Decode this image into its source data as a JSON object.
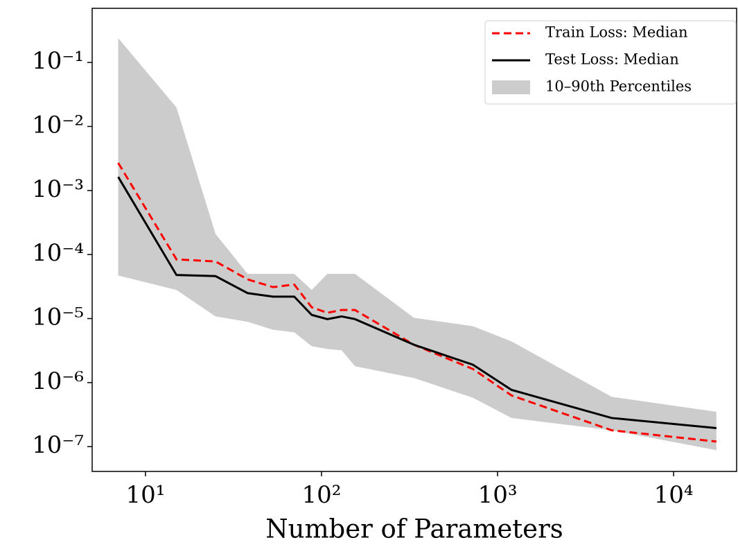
{
  "chart_data": {
    "type": "line",
    "xlabel": "Number of Parameters",
    "x": [
      7,
      15,
      25,
      38,
      53,
      70,
      88,
      108,
      130,
      155,
      335,
      725,
      1200,
      4450,
      17500
    ],
    "series": [
      {
        "name": "Train Loss: Median",
        "color": "#ff0000",
        "dash": true,
        "values": [
          0.0027,
          8.4e-05,
          7.8e-05,
          4.1e-05,
          3.1e-05,
          3.4e-05,
          1.5e-05,
          1.23e-05,
          1.36e-05,
          1.36e-05,
          3.9e-06,
          1.63e-06,
          6.3e-07,
          1.8e-07,
          1.2e-07
        ]
      },
      {
        "name": "Test Loss: Median",
        "color": "#000000",
        "dash": false,
        "values": [
          0.00163,
          4.8e-05,
          4.6e-05,
          2.5e-05,
          2.2e-05,
          2.2e-05,
          1.14e-05,
          9.8e-06,
          1.08e-05,
          9.8e-06,
          3.9e-06,
          1.9e-06,
          7.7e-07,
          2.8e-07,
          1.95e-07
        ]
      }
    ],
    "band": {
      "name": "10–90th Percentiles",
      "color": "#cccccc",
      "upper": [
        0.24,
        0.0198,
        0.00021,
        5e-05,
        5e-05,
        5e-05,
        2.8e-05,
        5e-05,
        5e-05,
        5e-05,
        1.03e-05,
        7.6e-06,
        4.4e-06,
        6e-07,
        3.5e-07
      ],
      "lower": [
        4.7e-05,
        2.8e-05,
        1.08e-05,
        8.9e-06,
        6.7e-06,
        6.1e-06,
        3.7e-06,
        3.35e-06,
        3.2e-06,
        1.8e-06,
        1.18e-06,
        5.8e-07,
        2.8e-07,
        1.8e-07,
        8.8e-08
      ]
    },
    "xscale": "log",
    "yscale": "log",
    "xlim": [
      4.98,
      22800
    ],
    "ylim": [
      4.1e-08,
      0.7
    ],
    "xticks": [
      {
        "value": 10,
        "label": "10¹"
      },
      {
        "value": 100,
        "label": "10²"
      },
      {
        "value": 1000,
        "label": "10³"
      },
      {
        "value": 10000,
        "label": "10⁴"
      }
    ],
    "yticks": [
      {
        "value": 1e-07,
        "label": "10⁻⁷"
      },
      {
        "value": 1e-06,
        "label": "10⁻⁶"
      },
      {
        "value": 1e-05,
        "label": "10⁻⁵"
      },
      {
        "value": 0.0001,
        "label": "10⁻⁴"
      },
      {
        "value": 0.001,
        "label": "10⁻³"
      },
      {
        "value": 0.01,
        "label": "10⁻²"
      },
      {
        "value": 0.1,
        "label": "10⁻¹"
      }
    ],
    "legend": "upper right",
    "grid": false
  }
}
